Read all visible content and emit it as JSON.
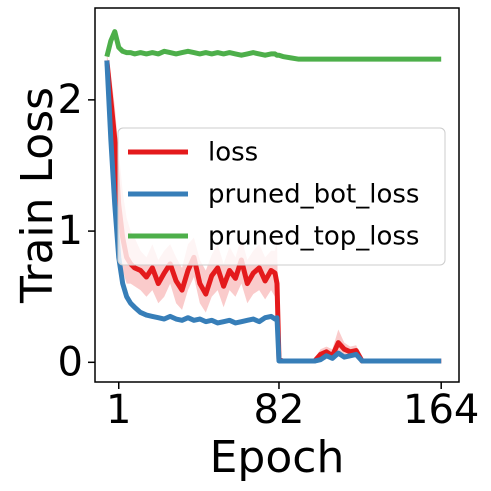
{
  "chart_data": {
    "type": "line",
    "xlabel": "Epoch",
    "ylabel": "Train Loss",
    "x": [
      -5,
      -3,
      -1,
      1,
      3,
      5,
      7,
      9,
      12,
      15,
      18,
      21,
      24,
      27,
      30,
      33,
      36,
      39,
      42,
      45,
      48,
      51,
      54,
      57,
      60,
      63,
      66,
      69,
      72,
      75,
      78,
      80,
      81,
      82,
      84,
      88,
      92,
      96,
      100,
      103,
      106,
      109,
      112,
      115,
      118,
      121,
      124,
      128,
      135,
      145,
      155,
      164
    ],
    "series": [
      {
        "name": "loss",
        "color": "#e41a1c",
        "band_color": "#f7a8a8",
        "values": [
          2.3,
          2.0,
          1.7,
          1.2,
          0.95,
          0.8,
          0.75,
          0.72,
          0.7,
          0.65,
          0.72,
          0.6,
          0.68,
          0.75,
          0.62,
          0.55,
          0.7,
          0.8,
          0.6,
          0.52,
          0.66,
          0.72,
          0.58,
          0.7,
          0.64,
          0.78,
          0.6,
          0.68,
          0.72,
          0.62,
          0.7,
          0.68,
          0.6,
          0.02,
          0.01,
          0.01,
          0.01,
          0.01,
          0.01,
          0.06,
          0.08,
          0.05,
          0.15,
          0.1,
          0.08,
          0.09,
          0.01,
          0.01,
          0.01,
          0.01,
          0.01,
          0.01
        ],
        "upper": [
          2.35,
          2.2,
          1.95,
          1.6,
          1.3,
          1.1,
          1.0,
          0.95,
          0.85,
          0.8,
          0.9,
          0.78,
          0.85,
          0.9,
          0.8,
          0.72,
          0.9,
          0.95,
          0.78,
          0.7,
          0.82,
          0.9,
          0.75,
          0.88,
          0.8,
          0.95,
          0.78,
          0.85,
          0.9,
          0.8,
          0.85,
          0.85,
          0.95,
          0.04,
          0.02,
          0.02,
          0.02,
          0.02,
          0.03,
          0.1,
          0.12,
          0.1,
          0.25,
          0.15,
          0.12,
          0.13,
          0.03,
          0.02,
          0.02,
          0.02,
          0.02,
          0.02
        ],
        "lower": [
          2.25,
          1.8,
          1.5,
          0.9,
          0.7,
          0.6,
          0.6,
          0.58,
          0.55,
          0.5,
          0.55,
          0.45,
          0.5,
          0.6,
          0.45,
          0.4,
          0.55,
          0.65,
          0.45,
          0.38,
          0.5,
          0.55,
          0.42,
          0.55,
          0.5,
          0.6,
          0.45,
          0.52,
          0.55,
          0.48,
          0.55,
          0.5,
          0.4,
          0,
          0,
          0,
          0,
          0,
          0,
          0.02,
          0.04,
          0.01,
          0.08,
          0.05,
          0.04,
          0.05,
          0,
          0,
          0,
          0,
          0,
          0
        ]
      },
      {
        "name": "pruned_bot_loss",
        "color": "#377eb8",
        "values": [
          2.3,
          1.7,
          1.2,
          0.8,
          0.6,
          0.5,
          0.45,
          0.42,
          0.38,
          0.36,
          0.35,
          0.34,
          0.33,
          0.35,
          0.33,
          0.32,
          0.34,
          0.32,
          0.33,
          0.31,
          0.32,
          0.3,
          0.31,
          0.32,
          0.3,
          0.31,
          0.32,
          0.33,
          0.31,
          0.34,
          0.35,
          0.33,
          0.34,
          0.01,
          0.01,
          0.01,
          0.01,
          0.01,
          0.01,
          0.02,
          0.05,
          0.03,
          0.07,
          0.04,
          0.05,
          0.06,
          0.01,
          0.01,
          0.01,
          0.01,
          0.01,
          0.01
        ]
      },
      {
        "name": "pruned_top_loss",
        "color": "#4daf4a",
        "values": [
          2.33,
          2.45,
          2.52,
          2.4,
          2.37,
          2.36,
          2.36,
          2.35,
          2.36,
          2.35,
          2.36,
          2.35,
          2.37,
          2.36,
          2.35,
          2.36,
          2.37,
          2.36,
          2.35,
          2.36,
          2.35,
          2.36,
          2.35,
          2.36,
          2.35,
          2.34,
          2.35,
          2.36,
          2.35,
          2.34,
          2.35,
          2.35,
          2.34,
          2.34,
          2.33,
          2.32,
          2.31,
          2.31,
          2.31,
          2.31,
          2.31,
          2.31,
          2.31,
          2.31,
          2.31,
          2.31,
          2.31,
          2.31,
          2.31,
          2.31,
          2.31,
          2.31
        ]
      }
    ],
    "xlim": [
      -11,
      173
    ],
    "ylim": [
      -0.15,
      2.7
    ],
    "xticks": [
      1,
      82,
      164
    ],
    "yticks": [
      0,
      1,
      2
    ],
    "legend": "center"
  }
}
